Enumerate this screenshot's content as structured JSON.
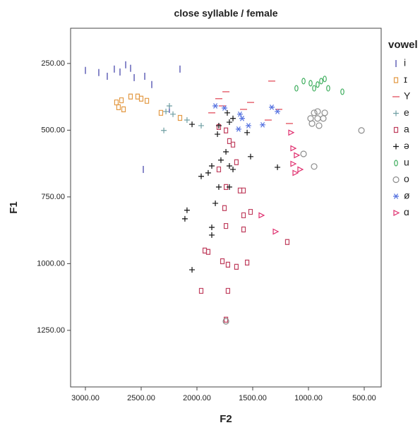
{
  "chart_data": {
    "type": "scatter",
    "title": "close syllable / female",
    "x_label": "F2",
    "y_label": "F1",
    "legend_title": "vowel",
    "xlim": [
      3133,
      348
    ],
    "ylim": [
      118,
      1462
    ],
    "xticks": [
      {
        "value": 3000,
        "label": "3000.00"
      },
      {
        "value": 2500,
        "label": "2500.00"
      },
      {
        "value": 2000,
        "label": "2000.00"
      },
      {
        "value": 1500,
        "label": "1500.00"
      },
      {
        "value": 1000,
        "label": "1000.00"
      },
      {
        "value": 500,
        "label": "500.00"
      }
    ],
    "yticks": [
      {
        "value": 250,
        "label": "250.00"
      },
      {
        "value": 500,
        "label": "500.00"
      },
      {
        "value": 750,
        "label": "750.00"
      },
      {
        "value": 1000,
        "label": "1000.00"
      },
      {
        "value": 1250,
        "label": "1250.00"
      }
    ],
    "series": [
      {
        "name": "i",
        "color": "#3b3ba6",
        "marker": "vline",
        "x": [
          3000,
          2880,
          2804,
          2741,
          2690,
          2639,
          2595,
          2563,
          2468,
          2405,
          2152,
          2247,
          2481
        ],
        "y": [
          276,
          284,
          298,
          271,
          282,
          255,
          268,
          303,
          298,
          329,
          271,
          422,
          647
        ]
      },
      {
        "name": "ɪ",
        "color": "#e39a45",
        "marker": "square",
        "x": [
          2722,
          2677,
          2595,
          2532,
          2500,
          2449,
          2703,
          2658,
          2323,
          2152
        ],
        "y": [
          396,
          388,
          374,
          374,
          382,
          390,
          414,
          422,
          435,
          454
        ]
      },
      {
        "name": "Y",
        "color": "#e0404f",
        "marker": "hline",
        "x": [
          1804,
          1772,
          1740,
          1582,
          1329,
          1519,
          1266,
          1867,
          1361,
          1171
        ],
        "y": [
          382,
          409,
          356,
          422,
          316,
          396,
          422,
          435,
          462,
          475
        ]
      },
      {
        "name": "e",
        "color": "#6f9fa3",
        "marker": "plus",
        "x": [
          2247,
          2278,
          2215,
          2297,
          2089,
          1962
        ],
        "y": [
          409,
          430,
          440,
          501,
          462,
          483
        ]
      },
      {
        "name": "a",
        "color": "#c0405f",
        "marker": "square",
        "x": [
          1804,
          1740,
          1709,
          1677,
          1646,
          1804,
          1740,
          1614,
          1582,
          1753,
          1519,
          1582,
          1740,
          1582,
          1930,
          1899,
          1772,
          1722,
          1646,
          1550,
          1962,
          1722,
          1740,
          1190
        ],
        "y": [
          488,
          501,
          541,
          554,
          620,
          647,
          713,
          726,
          726,
          792,
          806,
          819,
          859,
          872,
          951,
          956,
          991,
          1004,
          1012,
          996,
          1102,
          1102,
          1210,
          919
        ]
      },
      {
        "name": "ə",
        "color": "#111111",
        "marker": "plus",
        "x": [
          2044,
          1962,
          1899,
          1867,
          1816,
          1785,
          1740,
          1677,
          1709,
          1804,
          1709,
          1519,
          1550,
          1278,
          1835,
          2089,
          2108,
          1867,
          1867,
          2044,
          1804,
          1728,
          1709,
          1677
        ],
        "y": [
          478,
          673,
          660,
          634,
          515,
          612,
          581,
          647,
          634,
          713,
          713,
          599,
          509,
          639,
          774,
          800,
          832,
          864,
          893,
          1023,
          483,
          435,
          470,
          456
        ]
      },
      {
        "name": "u",
        "color": "#3fae5e",
        "marker": "ellipse",
        "x": [
          1108,
          1044,
          981,
          918,
          886,
          854,
          823,
          696,
          949
        ],
        "y": [
          343,
          316,
          324,
          329,
          316,
          308,
          343,
          356,
          343
        ]
      },
      {
        "name": "o",
        "color": "#8c8c8c",
        "marker": "circle",
        "x": [
          949,
          918,
          854,
          981,
          918,
          867,
          968,
          905,
          525,
          1044,
          949,
          1740
        ],
        "y": [
          435,
          430,
          435,
          456,
          456,
          456,
          475,
          483,
          501,
          589,
          636,
          1216
        ]
      },
      {
        "name": "ø",
        "color": "#5572e0",
        "marker": "star",
        "x": [
          1835,
          1753,
          1614,
          1595,
          1627,
          1538,
          1411,
          1329,
          1278
        ],
        "y": [
          409,
          417,
          440,
          456,
          496,
          483,
          480,
          414,
          430
        ]
      },
      {
        "name": "ɑ",
        "color": "#e0306f",
        "marker": "triangle",
        "x": [
          1158,
          1139,
          1108,
          1139,
          1076,
          1120,
          1424,
          1297
        ],
        "y": [
          509,
          568,
          594,
          626,
          647,
          660,
          819,
          880
        ]
      }
    ]
  }
}
